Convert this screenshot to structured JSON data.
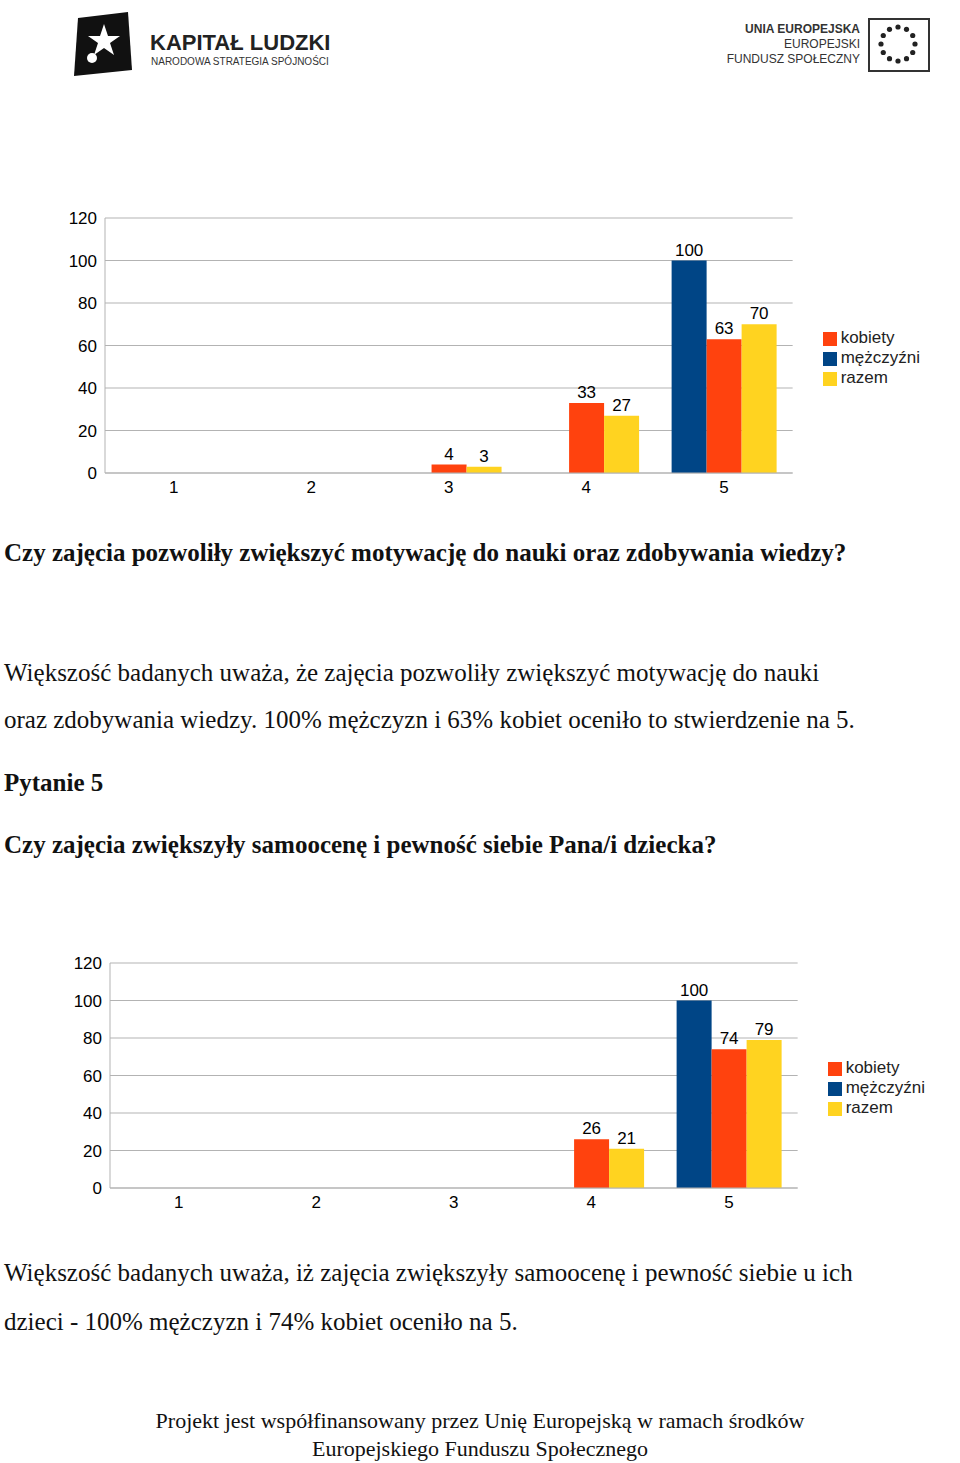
{
  "header": {
    "left_logo": {
      "title": "KAPITAŁ LUDZKI",
      "subtitle": "NARODOWA STRATEGIA SPÓJNOŚCI"
    },
    "right_logo": {
      "lines": [
        "UNIA EUROPEJSKA",
        "EUROPEJSKI",
        "FUNDUSZ SPOŁECZNY"
      ]
    }
  },
  "chart_data": [
    {
      "type": "bar",
      "categories": [
        "1",
        "2",
        "3",
        "4",
        "5"
      ],
      "series": [
        {
          "name": "mężczyźni",
          "color": "#004586",
          "values": [
            0,
            0,
            0,
            0,
            100
          ]
        },
        {
          "name": "kobiety",
          "color": "#ff420e",
          "values": [
            0,
            0,
            4,
            33,
            63
          ]
        },
        {
          "name": "razem",
          "color": "#ffd320",
          "values": [
            0,
            0,
            3,
            27,
            70
          ]
        }
      ],
      "ylim": [
        0,
        120
      ],
      "yticks": [
        0,
        20,
        40,
        60,
        80,
        100,
        120
      ],
      "grid": true,
      "legend": "right",
      "data_labels": true
    },
    {
      "type": "bar",
      "categories": [
        "1",
        "2",
        "3",
        "4",
        "5"
      ],
      "series": [
        {
          "name": "mężczyźni",
          "color": "#004586",
          "values": [
            0,
            0,
            0,
            0,
            100
          ]
        },
        {
          "name": "kobiety",
          "color": "#ff420e",
          "values": [
            0,
            0,
            0,
            26,
            74
          ]
        },
        {
          "name": "razem",
          "color": "#ffd320",
          "values": [
            0,
            0,
            0,
            21,
            79
          ]
        }
      ],
      "ylim": [
        0,
        120
      ],
      "yticks": [
        0,
        20,
        40,
        60,
        80,
        100,
        120
      ],
      "grid": true,
      "legend": "right",
      "data_labels": true
    }
  ],
  "texts": {
    "question_1": "Czy zajęcia pozwoliły zwiększyć motywację do nauki oraz zdobywania wiedzy?",
    "paragraph_1": [
      "Większość badanych uważa, że  zajęcia pozwoliły zwiększyć motywację do nauki",
      "oraz zdobywania wiedzy. 100% mężczyzn i 63% kobiet oceniło to stwierdzenie na 5."
    ],
    "heading_2": "Pytanie 5",
    "question_2": "Czy zajęcia zwiększyły samoocenę i pewność siebie Pana/i dziecka?",
    "paragraph_2": [
      "Większość badanych uważa, iż zajęcia zwiększyły samoocenę i pewność siebie u ich",
      "dzieci - 100% mężczyzn i 74% kobiet oceniło na 5."
    ],
    "footer": [
      "Projekt jest współfinansowany przez Unię Europejską w ramach środków",
      "Europejskiego Funduszu Społecznego"
    ]
  }
}
